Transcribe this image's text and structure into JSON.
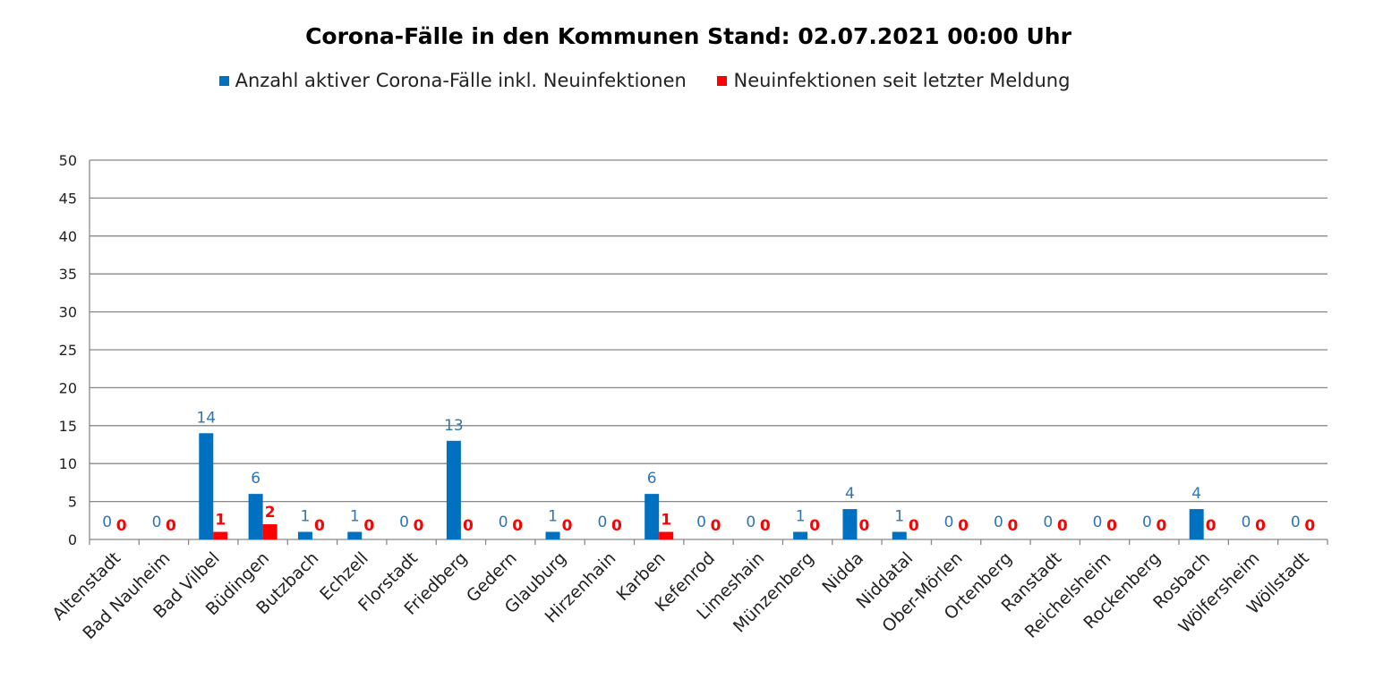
{
  "chart_data": {
    "type": "bar",
    "title": "Corona-Fälle in den Kommunen Stand: 02.07.2021 00:00 Uhr",
    "categories": [
      "Altenstadt",
      "Bad Nauheim",
      "Bad Vilbel",
      "Büdingen",
      "Butzbach",
      "Echzell",
      "Florstadt",
      "Friedberg",
      "Gedern",
      "Glauburg",
      "Hirzenhain",
      "Karben",
      "Kefenrod",
      "Limeshain",
      "Münzenberg",
      "Nidda",
      "Niddatal",
      "Ober-Mörlen",
      "Ortenberg",
      "Ranstadt",
      "Reichelsheim",
      "Rockenberg",
      "Rosbach",
      "Wölfersheim",
      "Wöllstadt"
    ],
    "series": [
      {
        "name": "Anzahl aktiver Corona-Fälle inkl. Neuinfektionen",
        "color": "#0070C0",
        "values": [
          0,
          0,
          14,
          6,
          1,
          1,
          0,
          13,
          0,
          1,
          0,
          6,
          0,
          0,
          1,
          4,
          1,
          0,
          0,
          0,
          0,
          0,
          4,
          0,
          0
        ]
      },
      {
        "name": "Neuinfektionen seit letzter Meldung",
        "color": "#FF0000",
        "values": [
          0,
          0,
          1,
          2,
          0,
          0,
          0,
          0,
          0,
          0,
          0,
          1,
          0,
          0,
          0,
          0,
          0,
          0,
          0,
          0,
          0,
          0,
          0,
          0,
          0
        ]
      }
    ],
    "ylim": [
      0,
      50
    ],
    "yticks": [
      0,
      5,
      10,
      15,
      20,
      25,
      30,
      35,
      40,
      45,
      50
    ],
    "xlabel": "",
    "ylabel": "",
    "grid": true,
    "legend_position": "top"
  }
}
